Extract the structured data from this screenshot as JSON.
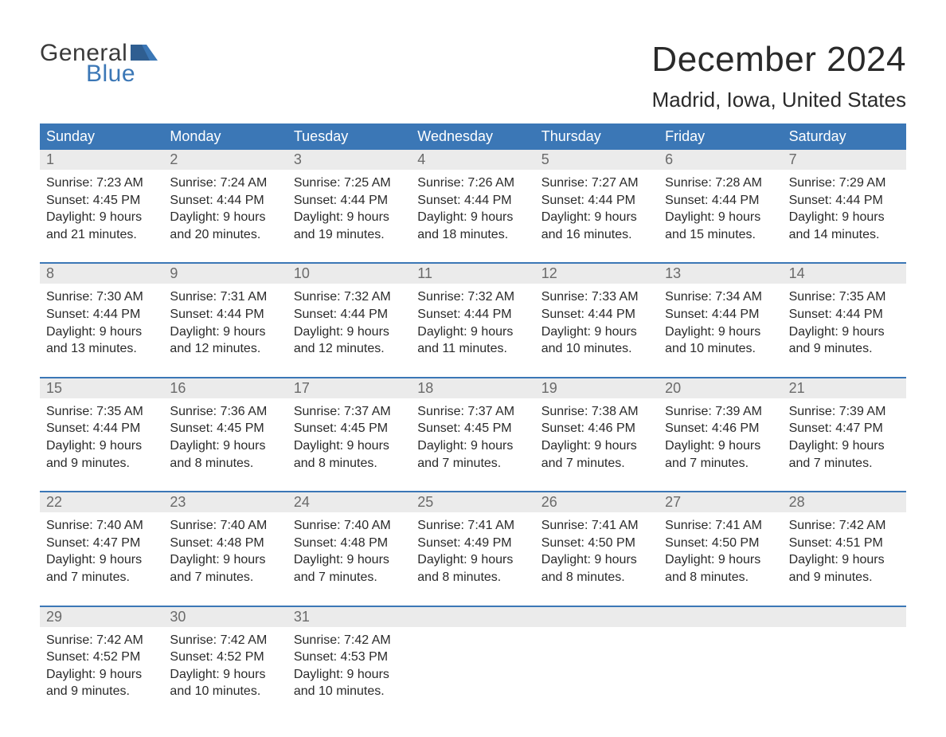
{
  "brand": {
    "word1": "General",
    "word2": "Blue"
  },
  "title": "December 2024",
  "location": "Madrid, Iowa, United States",
  "colors": {
    "header_bg": "#3b77b6",
    "header_text": "#ffffff",
    "daynum_bg": "#ebebeb",
    "daynum_text": "#6a6a6a",
    "body_text": "#2a2a2a",
    "week_divider": "#3b77b6",
    "logo_dark": "#3a3a3a",
    "logo_blue": "#3b77b6",
    "page_bg": "#ffffff"
  },
  "typography": {
    "title_fontsize": 44,
    "location_fontsize": 26,
    "weekday_fontsize": 18,
    "daynum_fontsize": 18,
    "body_fontsize": 16
  },
  "layout": {
    "columns": 7,
    "rows": 5,
    "week_divider_width": 2
  },
  "weekdays": [
    "Sunday",
    "Monday",
    "Tuesday",
    "Wednesday",
    "Thursday",
    "Friday",
    "Saturday"
  ],
  "weeks": [
    [
      {
        "num": "1",
        "sunrise": "Sunrise: 7:23 AM",
        "sunset": "Sunset: 4:45 PM",
        "day1": "Daylight: 9 hours",
        "day2": "and 21 minutes."
      },
      {
        "num": "2",
        "sunrise": "Sunrise: 7:24 AM",
        "sunset": "Sunset: 4:44 PM",
        "day1": "Daylight: 9 hours",
        "day2": "and 20 minutes."
      },
      {
        "num": "3",
        "sunrise": "Sunrise: 7:25 AM",
        "sunset": "Sunset: 4:44 PM",
        "day1": "Daylight: 9 hours",
        "day2": "and 19 minutes."
      },
      {
        "num": "4",
        "sunrise": "Sunrise: 7:26 AM",
        "sunset": "Sunset: 4:44 PM",
        "day1": "Daylight: 9 hours",
        "day2": "and 18 minutes."
      },
      {
        "num": "5",
        "sunrise": "Sunrise: 7:27 AM",
        "sunset": "Sunset: 4:44 PM",
        "day1": "Daylight: 9 hours",
        "day2": "and 16 minutes."
      },
      {
        "num": "6",
        "sunrise": "Sunrise: 7:28 AM",
        "sunset": "Sunset: 4:44 PM",
        "day1": "Daylight: 9 hours",
        "day2": "and 15 minutes."
      },
      {
        "num": "7",
        "sunrise": "Sunrise: 7:29 AM",
        "sunset": "Sunset: 4:44 PM",
        "day1": "Daylight: 9 hours",
        "day2": "and 14 minutes."
      }
    ],
    [
      {
        "num": "8",
        "sunrise": "Sunrise: 7:30 AM",
        "sunset": "Sunset: 4:44 PM",
        "day1": "Daylight: 9 hours",
        "day2": "and 13 minutes."
      },
      {
        "num": "9",
        "sunrise": "Sunrise: 7:31 AM",
        "sunset": "Sunset: 4:44 PM",
        "day1": "Daylight: 9 hours",
        "day2": "and 12 minutes."
      },
      {
        "num": "10",
        "sunrise": "Sunrise: 7:32 AM",
        "sunset": "Sunset: 4:44 PM",
        "day1": "Daylight: 9 hours",
        "day2": "and 12 minutes."
      },
      {
        "num": "11",
        "sunrise": "Sunrise: 7:32 AM",
        "sunset": "Sunset: 4:44 PM",
        "day1": "Daylight: 9 hours",
        "day2": "and 11 minutes."
      },
      {
        "num": "12",
        "sunrise": "Sunrise: 7:33 AM",
        "sunset": "Sunset: 4:44 PM",
        "day1": "Daylight: 9 hours",
        "day2": "and 10 minutes."
      },
      {
        "num": "13",
        "sunrise": "Sunrise: 7:34 AM",
        "sunset": "Sunset: 4:44 PM",
        "day1": "Daylight: 9 hours",
        "day2": "and 10 minutes."
      },
      {
        "num": "14",
        "sunrise": "Sunrise: 7:35 AM",
        "sunset": "Sunset: 4:44 PM",
        "day1": "Daylight: 9 hours",
        "day2": "and 9 minutes."
      }
    ],
    [
      {
        "num": "15",
        "sunrise": "Sunrise: 7:35 AM",
        "sunset": "Sunset: 4:44 PM",
        "day1": "Daylight: 9 hours",
        "day2": "and 9 minutes."
      },
      {
        "num": "16",
        "sunrise": "Sunrise: 7:36 AM",
        "sunset": "Sunset: 4:45 PM",
        "day1": "Daylight: 9 hours",
        "day2": "and 8 minutes."
      },
      {
        "num": "17",
        "sunrise": "Sunrise: 7:37 AM",
        "sunset": "Sunset: 4:45 PM",
        "day1": "Daylight: 9 hours",
        "day2": "and 8 minutes."
      },
      {
        "num": "18",
        "sunrise": "Sunrise: 7:37 AM",
        "sunset": "Sunset: 4:45 PM",
        "day1": "Daylight: 9 hours",
        "day2": "and 7 minutes."
      },
      {
        "num": "19",
        "sunrise": "Sunrise: 7:38 AM",
        "sunset": "Sunset: 4:46 PM",
        "day1": "Daylight: 9 hours",
        "day2": "and 7 minutes."
      },
      {
        "num": "20",
        "sunrise": "Sunrise: 7:39 AM",
        "sunset": "Sunset: 4:46 PM",
        "day1": "Daylight: 9 hours",
        "day2": "and 7 minutes."
      },
      {
        "num": "21",
        "sunrise": "Sunrise: 7:39 AM",
        "sunset": "Sunset: 4:47 PM",
        "day1": "Daylight: 9 hours",
        "day2": "and 7 minutes."
      }
    ],
    [
      {
        "num": "22",
        "sunrise": "Sunrise: 7:40 AM",
        "sunset": "Sunset: 4:47 PM",
        "day1": "Daylight: 9 hours",
        "day2": "and 7 minutes."
      },
      {
        "num": "23",
        "sunrise": "Sunrise: 7:40 AM",
        "sunset": "Sunset: 4:48 PM",
        "day1": "Daylight: 9 hours",
        "day2": "and 7 minutes."
      },
      {
        "num": "24",
        "sunrise": "Sunrise: 7:40 AM",
        "sunset": "Sunset: 4:48 PM",
        "day1": "Daylight: 9 hours",
        "day2": "and 7 minutes."
      },
      {
        "num": "25",
        "sunrise": "Sunrise: 7:41 AM",
        "sunset": "Sunset: 4:49 PM",
        "day1": "Daylight: 9 hours",
        "day2": "and 8 minutes."
      },
      {
        "num": "26",
        "sunrise": "Sunrise: 7:41 AM",
        "sunset": "Sunset: 4:50 PM",
        "day1": "Daylight: 9 hours",
        "day2": "and 8 minutes."
      },
      {
        "num": "27",
        "sunrise": "Sunrise: 7:41 AM",
        "sunset": "Sunset: 4:50 PM",
        "day1": "Daylight: 9 hours",
        "day2": "and 8 minutes."
      },
      {
        "num": "28",
        "sunrise": "Sunrise: 7:42 AM",
        "sunset": "Sunset: 4:51 PM",
        "day1": "Daylight: 9 hours",
        "day2": "and 9 minutes."
      }
    ],
    [
      {
        "num": "29",
        "sunrise": "Sunrise: 7:42 AM",
        "sunset": "Sunset: 4:52 PM",
        "day1": "Daylight: 9 hours",
        "day2": "and 9 minutes."
      },
      {
        "num": "30",
        "sunrise": "Sunrise: 7:42 AM",
        "sunset": "Sunset: 4:52 PM",
        "day1": "Daylight: 9 hours",
        "day2": "and 10 minutes."
      },
      {
        "num": "31",
        "sunrise": "Sunrise: 7:42 AM",
        "sunset": "Sunset: 4:53 PM",
        "day1": "Daylight: 9 hours",
        "day2": "and 10 minutes."
      },
      null,
      null,
      null,
      null
    ]
  ]
}
